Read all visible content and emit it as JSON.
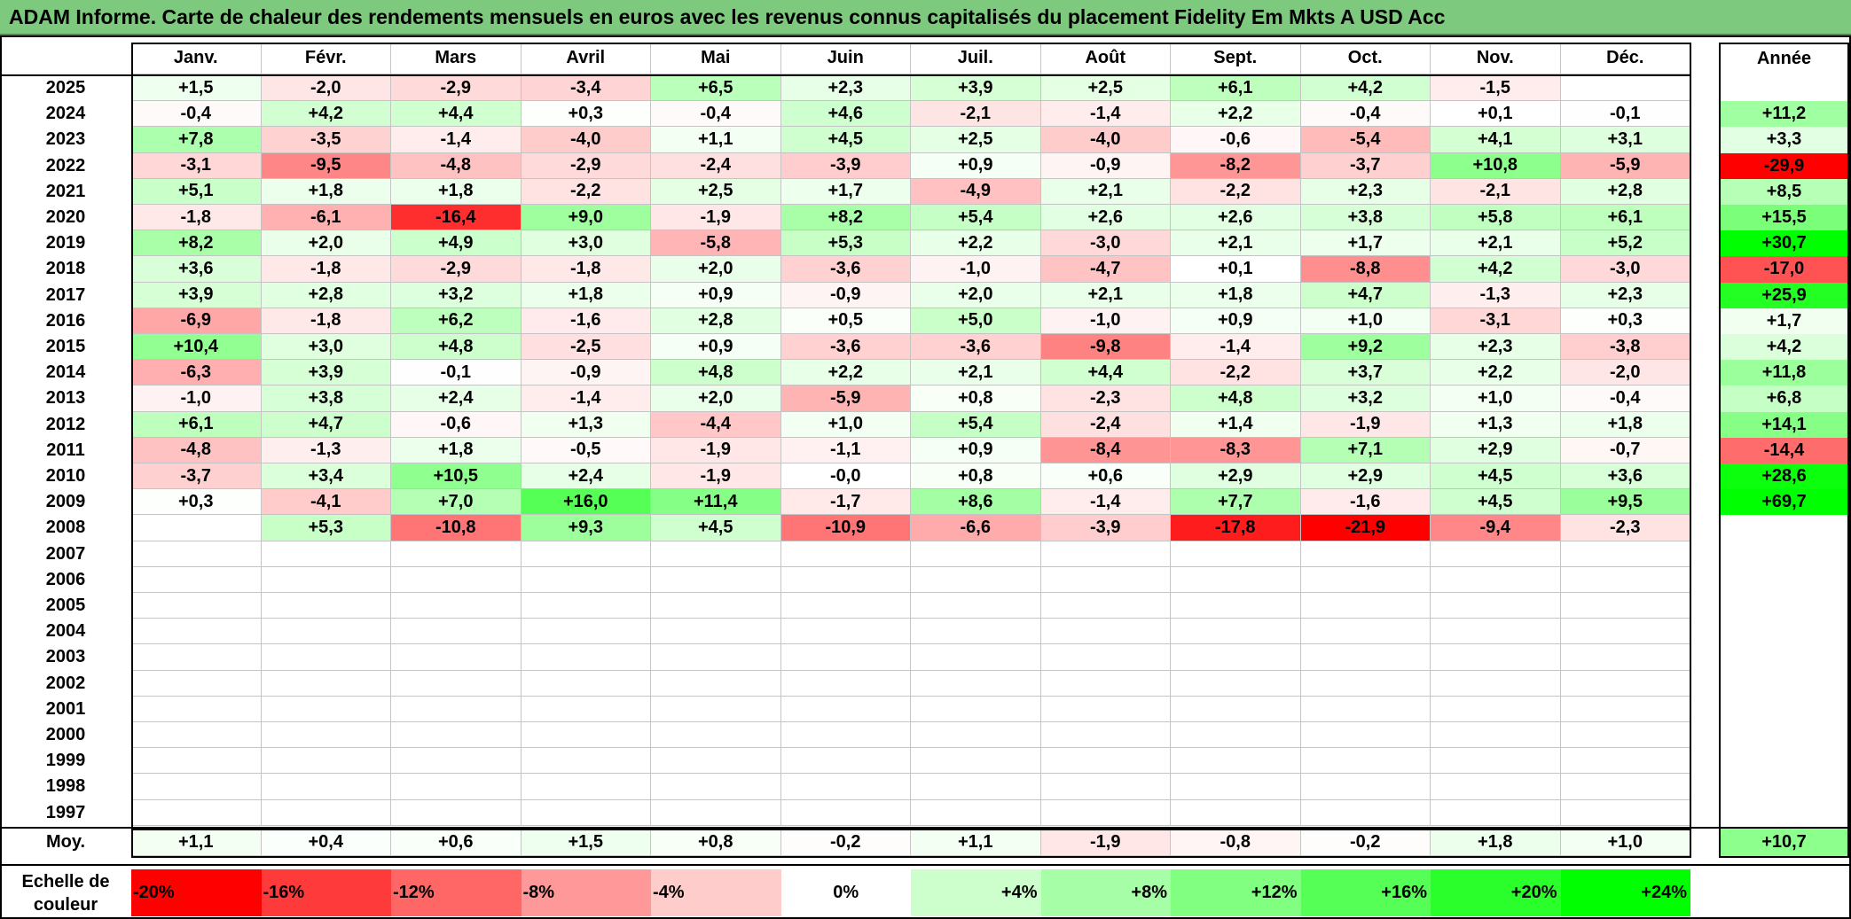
{
  "title": "ADAM Informe. Carte de chaleur des rendements mensuels en euros avec les revenus connus capitalisés du placement Fidelity Em Mkts A USD Acc",
  "chart_data": {
    "type": "heatmap",
    "title": "ADAM Informe. Carte de chaleur des rendements mensuels en euros avec les revenus connus capitalisés du placement Fidelity Em Mkts A USD Acc",
    "months": [
      "Janv.",
      "Févr.",
      "Mars",
      "Avril",
      "Mai",
      "Juin",
      "Juil.",
      "Août",
      "Sept.",
      "Oct.",
      "Nov.",
      "Déc."
    ],
    "annual_label": "Année",
    "rows": [
      {
        "year": "2025",
        "values": [
          "+1,5",
          "-2,0",
          "-2,9",
          "-3,4",
          "+6,5",
          "+2,3",
          "+3,9",
          "+2,5",
          "+6,1",
          "+4,2",
          "-1,5",
          ""
        ],
        "annual": ""
      },
      {
        "year": "2024",
        "values": [
          "-0,4",
          "+4,2",
          "+4,4",
          "+0,3",
          "-0,4",
          "+4,6",
          "-2,1",
          "-1,4",
          "+2,2",
          "-0,4",
          "+0,1",
          "-0,1"
        ],
        "annual": "+11,2"
      },
      {
        "year": "2023",
        "values": [
          "+7,8",
          "-3,5",
          "-1,4",
          "-4,0",
          "+1,1",
          "+4,5",
          "+2,5",
          "-4,0",
          "-0,6",
          "-5,4",
          "+4,1",
          "+3,1"
        ],
        "annual": "+3,3"
      },
      {
        "year": "2022",
        "values": [
          "-3,1",
          "-9,5",
          "-4,8",
          "-2,9",
          "-2,4",
          "-3,9",
          "+0,9",
          "-0,9",
          "-8,2",
          "-3,7",
          "+10,8",
          "-5,9"
        ],
        "annual": "-29,9"
      },
      {
        "year": "2021",
        "values": [
          "+5,1",
          "+1,8",
          "+1,8",
          "-2,2",
          "+2,5",
          "+1,7",
          "-4,9",
          "+2,1",
          "-2,2",
          "+2,3",
          "-2,1",
          "+2,8"
        ],
        "annual": "+8,5"
      },
      {
        "year": "2020",
        "values": [
          "-1,8",
          "-6,1",
          "-16,4",
          "+9,0",
          "-1,9",
          "+8,2",
          "+5,4",
          "+2,6",
          "+2,6",
          "+3,8",
          "+5,8",
          "+6,1"
        ],
        "annual": "+15,5"
      },
      {
        "year": "2019",
        "values": [
          "+8,2",
          "+2,0",
          "+4,9",
          "+3,0",
          "-5,8",
          "+5,3",
          "+2,2",
          "-3,0",
          "+2,1",
          "+1,7",
          "+2,1",
          "+5,2"
        ],
        "annual": "+30,7"
      },
      {
        "year": "2018",
        "values": [
          "+3,6",
          "-1,8",
          "-2,9",
          "-1,8",
          "+2,0",
          "-3,6",
          "-1,0",
          "-4,7",
          "+0,1",
          "-8,8",
          "+4,2",
          "-3,0"
        ],
        "annual": "-17,0"
      },
      {
        "year": "2017",
        "values": [
          "+3,9",
          "+2,8",
          "+3,2",
          "+1,8",
          "+0,9",
          "-0,9",
          "+2,0",
          "+2,1",
          "+1,8",
          "+4,7",
          "-1,3",
          "+2,3"
        ],
        "annual": "+25,9"
      },
      {
        "year": "2016",
        "values": [
          "-6,9",
          "-1,8",
          "+6,2",
          "-1,6",
          "+2,8",
          "+0,5",
          "+5,0",
          "-1,0",
          "+0,9",
          "+1,0",
          "-3,1",
          "+0,3"
        ],
        "annual": "+1,7"
      },
      {
        "year": "2015",
        "values": [
          "+10,4",
          "+3,0",
          "+4,8",
          "-2,5",
          "+0,9",
          "-3,6",
          "-3,6",
          "-9,8",
          "-1,4",
          "+9,2",
          "+2,3",
          "-3,8"
        ],
        "annual": "+4,2"
      },
      {
        "year": "2014",
        "values": [
          "-6,3",
          "+3,9",
          "-0,1",
          "-0,9",
          "+4,8",
          "+2,2",
          "+2,1",
          "+4,4",
          "-2,2",
          "+3,7",
          "+2,2",
          "-2,0"
        ],
        "annual": "+11,8"
      },
      {
        "year": "2013",
        "values": [
          "-1,0",
          "+3,8",
          "+2,4",
          "-1,4",
          "+2,0",
          "-5,9",
          "+0,8",
          "-2,3",
          "+4,8",
          "+3,2",
          "+1,0",
          "-0,4"
        ],
        "annual": "+6,8"
      },
      {
        "year": "2012",
        "values": [
          "+6,1",
          "+4,7",
          "-0,6",
          "+1,3",
          "-4,4",
          "+1,0",
          "+5,4",
          "-2,4",
          "+1,4",
          "-1,9",
          "+1,3",
          "+1,8"
        ],
        "annual": "+14,1"
      },
      {
        "year": "2011",
        "values": [
          "-4,8",
          "-1,3",
          "+1,8",
          "-0,5",
          "-1,9",
          "-1,1",
          "+0,9",
          "-8,4",
          "-8,3",
          "+7,1",
          "+2,9",
          "-0,7"
        ],
        "annual": "-14,4"
      },
      {
        "year": "2010",
        "values": [
          "-3,7",
          "+3,4",
          "+10,5",
          "+2,4",
          "-1,9",
          "-0,0",
          "+0,8",
          "+0,6",
          "+2,9",
          "+2,9",
          "+4,5",
          "+3,6"
        ],
        "annual": "+28,6"
      },
      {
        "year": "2009",
        "values": [
          "+0,3",
          "-4,1",
          "+7,0",
          "+16,0",
          "+11,4",
          "-1,7",
          "+8,6",
          "-1,4",
          "+7,7",
          "-1,6",
          "+4,5",
          "+9,5"
        ],
        "annual": "+69,7"
      },
      {
        "year": "2008",
        "values": [
          "",
          "+5,3",
          "-10,8",
          "+9,3",
          "+4,5",
          "-10,9",
          "-6,6",
          "-3,9",
          "-17,8",
          "-21,9",
          "-9,4",
          "-2,3"
        ],
        "annual": ""
      },
      {
        "year": "2007",
        "values": [
          "",
          "",
          "",
          "",
          "",
          "",
          "",
          "",
          "",
          "",
          "",
          ""
        ],
        "annual": ""
      },
      {
        "year": "2006",
        "values": [
          "",
          "",
          "",
          "",
          "",
          "",
          "",
          "",
          "",
          "",
          "",
          ""
        ],
        "annual": ""
      },
      {
        "year": "2005",
        "values": [
          "",
          "",
          "",
          "",
          "",
          "",
          "",
          "",
          "",
          "",
          "",
          ""
        ],
        "annual": ""
      },
      {
        "year": "2004",
        "values": [
          "",
          "",
          "",
          "",
          "",
          "",
          "",
          "",
          "",
          "",
          "",
          ""
        ],
        "annual": ""
      },
      {
        "year": "2003",
        "values": [
          "",
          "",
          "",
          "",
          "",
          "",
          "",
          "",
          "",
          "",
          "",
          ""
        ],
        "annual": ""
      },
      {
        "year": "2002",
        "values": [
          "",
          "",
          "",
          "",
          "",
          "",
          "",
          "",
          "",
          "",
          "",
          ""
        ],
        "annual": ""
      },
      {
        "year": "2001",
        "values": [
          "",
          "",
          "",
          "",
          "",
          "",
          "",
          "",
          "",
          "",
          "",
          ""
        ],
        "annual": ""
      },
      {
        "year": "2000",
        "values": [
          "",
          "",
          "",
          "",
          "",
          "",
          "",
          "",
          "",
          "",
          "",
          ""
        ],
        "annual": ""
      },
      {
        "year": "1999",
        "values": [
          "",
          "",
          "",
          "",
          "",
          "",
          "",
          "",
          "",
          "",
          "",
          ""
        ],
        "annual": ""
      },
      {
        "year": "1998",
        "values": [
          "",
          "",
          "",
          "",
          "",
          "",
          "",
          "",
          "",
          "",
          "",
          ""
        ],
        "annual": ""
      },
      {
        "year": "1997",
        "values": [
          "",
          "",
          "",
          "",
          "",
          "",
          "",
          "",
          "",
          "",
          "",
          ""
        ],
        "annual": ""
      }
    ],
    "average": {
      "label": "Moy.",
      "values": [
        "+1,1",
        "+0,4",
        "+0,6",
        "+1,5",
        "+0,8",
        "-0,2",
        "+1,1",
        "-1,9",
        "-0,8",
        "-0,2",
        "+1,8",
        "+1,0"
      ],
      "annual": "+10,7"
    },
    "color_scale": {
      "label": "Echelle de couleur",
      "stops": [
        {
          "label": "-20%",
          "color": "#ff0000"
        },
        {
          "label": "-16%",
          "color": "#ff3a3a"
        },
        {
          "label": "-12%",
          "color": "#ff6666"
        },
        {
          "label": "-8%",
          "color": "#ff9999"
        },
        {
          "label": "-4%",
          "color": "#ffcccc"
        },
        {
          "label": "0%",
          "color": "#ffffff"
        },
        {
          "label": "+4%",
          "color": "#ccffcc"
        },
        {
          "label": "+8%",
          "color": "#a6ffa6"
        },
        {
          "label": "+12%",
          "color": "#80ff80"
        },
        {
          "label": "+16%",
          "color": "#55ff55"
        },
        {
          "label": "+20%",
          "color": "#2bff2b"
        },
        {
          "label": "+24%",
          "color": "#00ff00"
        }
      ]
    }
  }
}
